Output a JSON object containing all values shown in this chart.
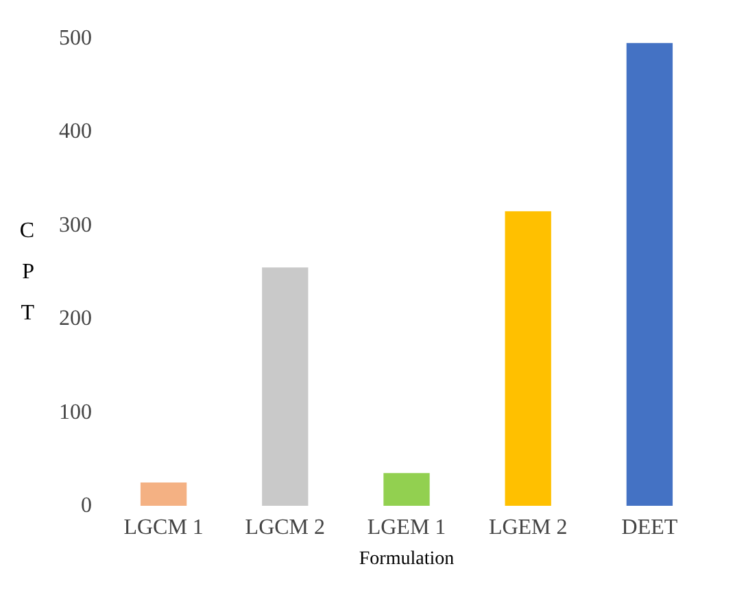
{
  "chart_data": {
    "type": "bar",
    "xlabel": "Formulation",
    "ylabel": "CPT",
    "categories": [
      "LGCM 1",
      "LGCM 2",
      "LGEM 1",
      "LGEM 2",
      "DEET"
    ],
    "values": [
      25,
      255,
      35,
      315,
      495
    ],
    "colors": [
      "#f4b183",
      "#c9c9c9",
      "#92d050",
      "#ffc000",
      "#4472c4"
    ],
    "ylim": [
      0,
      500
    ],
    "yticks": [
      0,
      100,
      200,
      300,
      400,
      500
    ],
    "grid": false
  }
}
